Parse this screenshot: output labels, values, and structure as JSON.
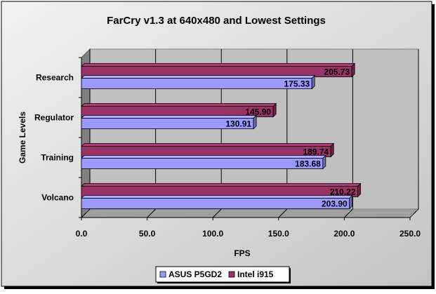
{
  "chart_data": {
    "type": "bar",
    "orientation": "horizontal",
    "title": "FarCry v1.3 at 640x480 and Lowest Settings",
    "xlabel": "FPS",
    "ylabel": "Game Levels",
    "categories": [
      "Research",
      "Regulator",
      "Training",
      "Volcano"
    ],
    "series": [
      {
        "name": "ASUS P5GD2",
        "color": "#9999ff",
        "values": [
          175.33,
          130.91,
          183.68,
          203.9
        ]
      },
      {
        "name": "Intel i915",
        "color": "#993366",
        "values": [
          205.73,
          145.9,
          189.74,
          210.22
        ]
      }
    ],
    "value_labels": {
      "ASUS P5GD2": [
        "175.33",
        "130.91",
        "183.68",
        "203.90"
      ],
      "Intel i915": [
        "205.73",
        "145.90",
        "189.74",
        "210.22"
      ]
    },
    "xlim": [
      0,
      250
    ],
    "xticks": [
      0,
      50,
      100,
      150,
      200,
      250
    ],
    "xtick_labels": [
      "0.0",
      "50.0",
      "100.0",
      "150.0",
      "200.0",
      "250.0"
    ],
    "grid": "vertical",
    "legend_position": "bottom",
    "plot_background": "#c0c0c0",
    "chart_background": "#ffffff"
  }
}
